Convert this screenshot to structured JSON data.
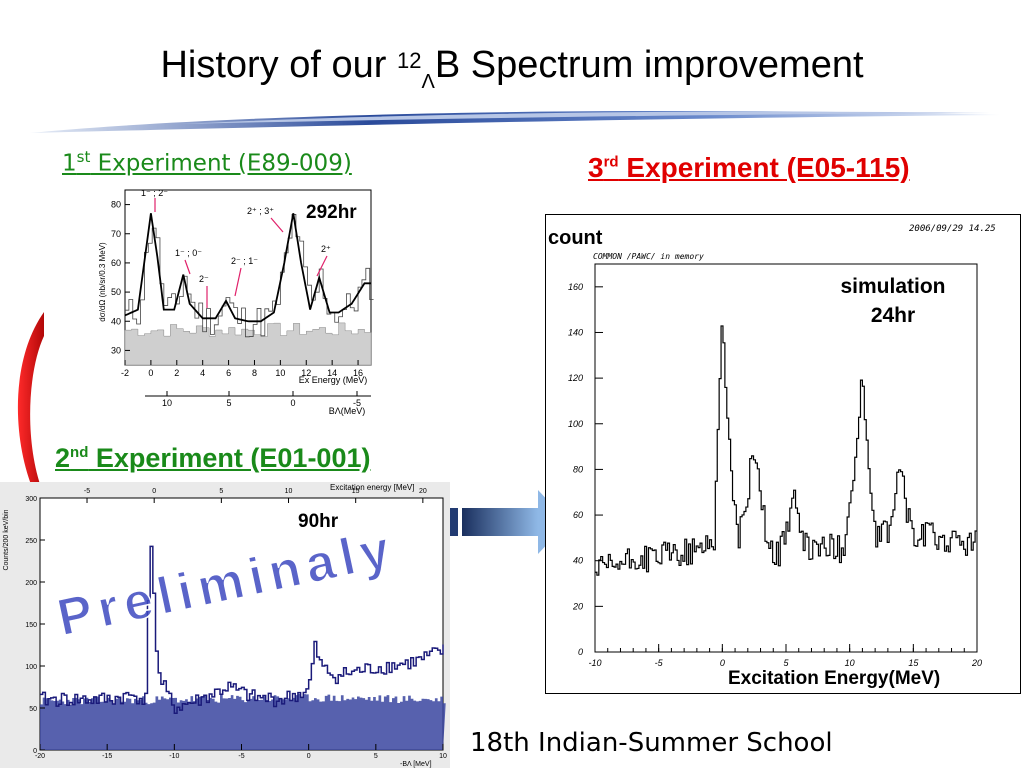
{
  "slide": {
    "title_prefix": "History of our ",
    "title_mass": "12",
    "title_lambda": "Λ",
    "title_suffix": "B Spectrum improvement",
    "footer": "18th Indian-Summer School",
    "watermark": "Preliminaly"
  },
  "exp1": {
    "ordinal": "1",
    "ordinal_suffix": "st",
    "label": " Experiment (E89-009)",
    "hours": "292hr",
    "peak_labels": [
      "1⁻ ; 2⁻",
      "2⁺ ; 3⁺",
      "1⁻ ; 0⁻",
      "2⁻",
      "2⁻ ; 1⁻",
      "2⁺"
    ],
    "ylabel": "dσ/dΩ (nb/sr/0.3 MeV)",
    "xlabel": "Ex Energy (MeV)",
    "x2label": "BΛ(MeV)",
    "xticks": [
      "-2",
      "0",
      "2",
      "4",
      "6",
      "8",
      "10",
      "12",
      "14",
      "16"
    ],
    "yticks": [
      "30",
      "40",
      "50",
      "60",
      "70",
      "80"
    ],
    "x2ticks": [
      "10",
      "5",
      "0",
      "-5"
    ]
  },
  "exp2": {
    "ordinal": "2",
    "ordinal_suffix": "nd",
    "label": " Experiment (E01-001)",
    "hours": "90hr",
    "top_axis_label": "Excitation energy [MeV]",
    "bottom_axis_label": "-BΛ [MeV]",
    "ylabel": "Counts/200 keV/bin",
    "top_ticks": [
      "-5",
      "0",
      "5",
      "10",
      "15",
      "20"
    ],
    "bottom_ticks": [
      "-20",
      "-15",
      "-10",
      "-5",
      "0",
      "5",
      "10"
    ],
    "yticks": [
      "0",
      "50",
      "100",
      "150",
      "200",
      "250",
      "300"
    ]
  },
  "exp3": {
    "ordinal": "3",
    "ordinal_suffix": "rd",
    "label": " Experiment (E05-115)",
    "ylabel": "count",
    "xlabel": "Excitation Energy(MeV)",
    "sim_line1": "simulation",
    "sim_line2": "24hr",
    "timestamp": "2006/09/29     14.25",
    "header": "COMMON /PAWC/ in memory",
    "xticks": [
      "-10",
      "-5",
      "0",
      "5",
      "10",
      "15",
      "20"
    ],
    "yticks": [
      "0",
      "20",
      "40",
      "60",
      "80",
      "100",
      "120",
      "140",
      "160"
    ]
  },
  "chart_data": [
    {
      "type": "line",
      "title": "1st Experiment (E89-009)",
      "xlabel": "Ex Energy (MeV)",
      "ylabel": "dσ/dΩ (nb/sr/0.3 MeV)",
      "xlim": [
        -2,
        17
      ],
      "ylim": [
        25,
        85
      ],
      "series": [
        {
          "x": [
            -2,
            -1,
            0,
            0.5,
            1,
            1.8,
            2.5,
            3,
            4,
            5,
            5.8,
            6.5,
            7.5,
            8.5,
            9.5,
            10.3,
            11,
            11.6,
            12.3,
            13,
            13.8,
            14.5,
            15.5,
            16.5
          ],
          "values": [
            42,
            44,
            77,
            62,
            44,
            44,
            56,
            46,
            41,
            41,
            47,
            41,
            40,
            40,
            43,
            60,
            77,
            60,
            44,
            55,
            43,
            43,
            46,
            53
          ]
        }
      ]
    },
    {
      "type": "line",
      "title": "2nd Experiment (E01-001)",
      "xlabel": "-BΛ [MeV]",
      "ylabel": "Counts/200 keV/bin",
      "xlim": [
        -20,
        10
      ],
      "ylim": [
        0,
        300
      ],
      "series": [
        {
          "x": [
            -20,
            -15,
            -13,
            -12,
            -11.8,
            -11.2,
            -10,
            -8,
            -6,
            -4,
            -2,
            0,
            0.5,
            1,
            2,
            4,
            6,
            8,
            10
          ],
          "values": [
            60,
            60,
            65,
            60,
            282,
            90,
            50,
            60,
            75,
            62,
            60,
            70,
            122,
            98,
            88,
            95,
            100,
            105,
            118
          ]
        },
        {
          "x": [
            -20,
            -10,
            0,
            10
          ],
          "values": [
            58,
            60,
            62,
            60
          ]
        }
      ]
    },
    {
      "type": "line",
      "title": "3rd Experiment (E05-115)",
      "xlabel": "Excitation Energy(MeV)",
      "ylabel": "count",
      "xlim": [
        -10,
        20
      ],
      "ylim": [
        0,
        170
      ],
      "series": [
        {
          "x": [
            -10,
            -7,
            -4,
            -2,
            -0.6,
            -0.1,
            0,
            0.3,
            0.8,
            1.3,
            2,
            2.5,
            3,
            3.6,
            4.5,
            5.2,
            5.6,
            6.2,
            7,
            8,
            9.5,
            10.6,
            10.9,
            11.1,
            11.4,
            12,
            13,
            13.6,
            14,
            14.5,
            15.2,
            16,
            18,
            20
          ],
          "values": [
            35,
            40,
            43,
            44,
            50,
            138,
            148,
            110,
            75,
            48,
            70,
            90,
            72,
            46,
            42,
            58,
            70,
            48,
            45,
            46,
            45,
            90,
            115,
            116,
            88,
            50,
            52,
            70,
            82,
            62,
            48,
            52,
            48,
            48
          ]
        }
      ]
    }
  ]
}
